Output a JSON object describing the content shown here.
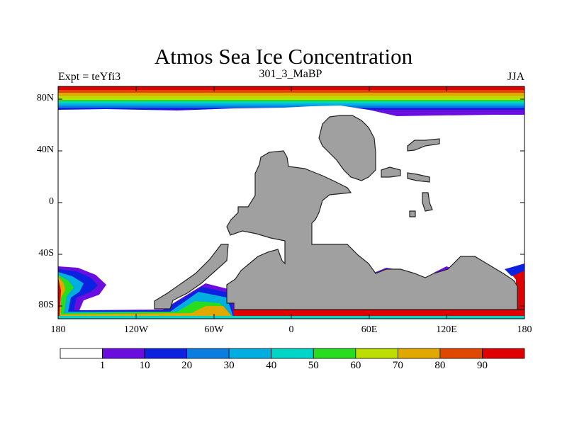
{
  "title": "Atmos Sea Ice Concentration",
  "left_string": "Expt = teYfi3",
  "center_string": "301_3_MaBP",
  "right_string": "JJA",
  "y_ticks": [
    "80N",
    "40N",
    "0",
    "40S",
    "80S"
  ],
  "x_ticks": [
    "180",
    "120W",
    "60W",
    "0",
    "60E",
    "120E",
    "180"
  ],
  "legend": {
    "labels": [
      "1",
      "10",
      "20",
      "30",
      "40",
      "50",
      "60",
      "70",
      "80",
      "90"
    ],
    "colors": [
      "#ffffff",
      "#6a0ee0",
      "#0c22e0",
      "#0a7ee0",
      "#00aee0",
      "#00d6c8",
      "#28dc1e",
      "#bcde00",
      "#e0a800",
      "#e04800",
      "#e00000"
    ]
  },
  "land_color": "#a0a0a0",
  "chart_data": {
    "type": "heatmap",
    "title": "Atmos Sea Ice Concentration",
    "variable": "sea ice concentration",
    "levels": [
      1,
      10,
      20,
      30,
      40,
      50,
      60,
      70,
      80,
      90
    ],
    "xlim": [
      -180,
      180
    ],
    "ylim": [
      -90,
      90
    ],
    "x_ticks": [
      "180",
      "120W",
      "60W",
      "0",
      "60E",
      "120E",
      "180"
    ],
    "y_ticks": [
      "80N",
      "40N",
      "0",
      "40S",
      "80S"
    ]
  }
}
